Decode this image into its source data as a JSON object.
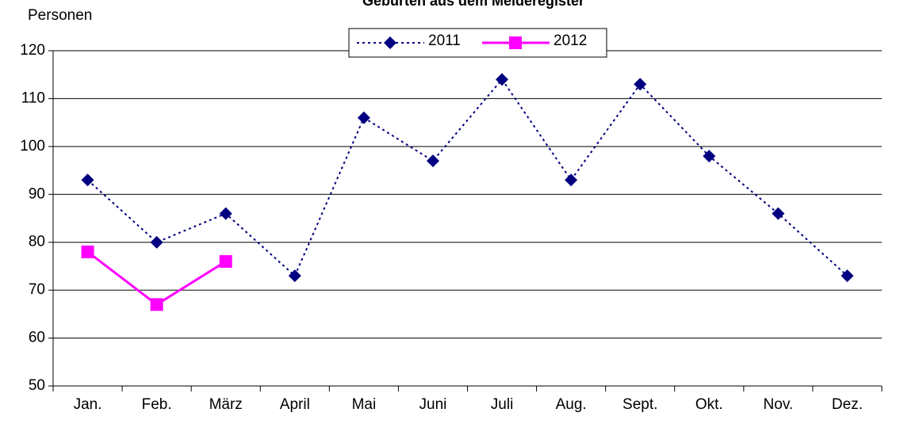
{
  "chart_data": {
    "type": "line",
    "title": "Geburten aus dem Melderegister",
    "y_label": "Personen",
    "categories": [
      "Jan.",
      "Feb.",
      "März",
      "April",
      "Mai",
      "Juni",
      "Juli",
      "Aug.",
      "Sept.",
      "Okt.",
      "Nov.",
      "Dez."
    ],
    "series": [
      {
        "name": "2011",
        "color": "#000080",
        "marker": "diamond",
        "dash": "dotted",
        "values": [
          93,
          80,
          86,
          73,
          106,
          97,
          114,
          93,
          113,
          98,
          86,
          73
        ]
      },
      {
        "name": "2012",
        "color": "#ff00ff",
        "marker": "square",
        "dash": "solid",
        "values": [
          78,
          67,
          76,
          null,
          null,
          null,
          null,
          null,
          null,
          null,
          null,
          null
        ]
      }
    ],
    "ylim": [
      50,
      120
    ],
    "yticks": [
      50,
      60,
      70,
      80,
      90,
      100,
      110,
      120
    ],
    "grid": true,
    "legend": "top"
  }
}
